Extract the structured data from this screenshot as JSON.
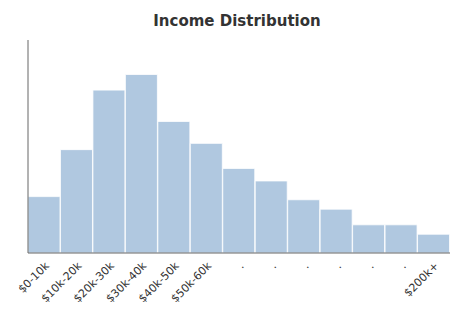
{
  "chart_data": {
    "type": "bar",
    "title": "Income Distribution",
    "categories": [
      "$0-10k",
      "$10k-20k",
      "$20k-30k",
      "$30k-40k",
      "$40k-50k",
      "$50k-60k",
      ".",
      ".",
      ".",
      ".",
      ".",
      ".",
      "$200k+"
    ],
    "values": [
      18,
      33,
      52,
      57,
      42,
      35,
      27,
      23,
      17,
      14,
      9,
      9,
      6
    ],
    "color": "#b0c8e0",
    "ylim": [
      0,
      68
    ],
    "yticks": [],
    "grid": false,
    "tick_labels": "x"
  }
}
